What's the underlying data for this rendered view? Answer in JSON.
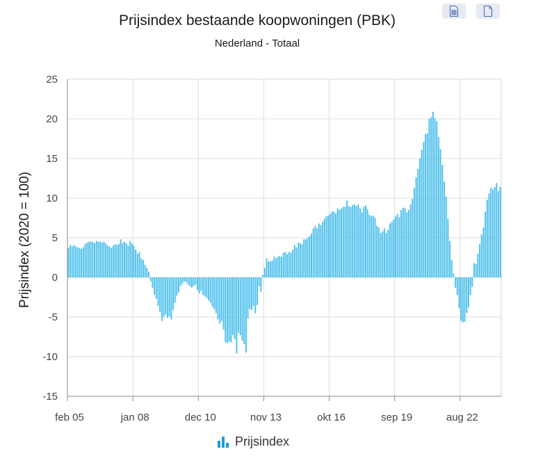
{
  "header": {
    "title": "Prijsindex bestaande koopwoningen (PBK)",
    "subtitle": "Nederland - Totaal"
  },
  "toolbar": {
    "table_icon": "table-file-icon",
    "file_icon": "file-icon"
  },
  "legend": {
    "label": "Prijsindex",
    "icon": "bar-chart-icon"
  },
  "chart_data": {
    "type": "bar",
    "title": "Prijsindex bestaande koopwoningen (PBK)",
    "subtitle": "Nederland - Totaal",
    "ylabel": "Prijsindex (2020 = 100)",
    "xlabel": "",
    "ylim": [
      -15,
      25
    ],
    "yticks": [
      25,
      20,
      15,
      10,
      5,
      0,
      -5,
      -10,
      -15
    ],
    "xtick_labels": [
      "feb 05",
      "jan 08",
      "dec 10",
      "nov 13",
      "okt 16",
      "sep 19",
      "aug 22"
    ],
    "start_month": "feb 05",
    "grid": true,
    "bar_color": "#4fc1ec",
    "series": [
      {
        "name": "Prijsindex",
        "values": [
          3.7,
          4.1,
          3.9,
          4.1,
          3.9,
          3.8,
          3.7,
          3.6,
          3.8,
          4.2,
          4.4,
          4.5,
          4.5,
          4.5,
          4.3,
          4.6,
          4.5,
          4.5,
          4.4,
          4.5,
          4.3,
          4.0,
          3.9,
          3.7,
          4.0,
          4.2,
          4.1,
          4.2,
          4.8,
          4.3,
          4.5,
          4.3,
          4.0,
          4.6,
          4.3,
          4.0,
          3.5,
          3.0,
          3.2,
          2.4,
          2.2,
          1.6,
          1.2,
          0.7,
          -0.5,
          -1.3,
          -2.2,
          -2.7,
          -3.6,
          -4.4,
          -5.5,
          -5.0,
          -4.7,
          -5.1,
          -4.9,
          -5.3,
          -4.1,
          -3.2,
          -2.3,
          -1.9,
          -1.1,
          -0.8,
          -0.5,
          -0.6,
          -0.9,
          -1.1,
          -1.3,
          -1.1,
          -0.9,
          -1.6,
          -2.0,
          -1.7,
          -2.2,
          -2.4,
          -2.6,
          -2.9,
          -3.2,
          -3.7,
          -4.0,
          -4.5,
          -5.3,
          -5.8,
          -5.5,
          -6.6,
          -8.2,
          -8.3,
          -8.1,
          -8.2,
          -7.3,
          -7.8,
          -9.6,
          -7.0,
          -7.3,
          -8.0,
          -8.4,
          -9.5,
          -5.2,
          -4.0,
          -4.1,
          -3.6,
          -4.5,
          -3.5,
          -1.1,
          -1.8,
          0.3,
          1.2,
          2.4,
          2.0,
          2.0,
          2.1,
          2.6,
          2.4,
          2.6,
          2.7,
          2.6,
          3.1,
          3.2,
          2.9,
          3.2,
          3.1,
          3.5,
          4.1,
          3.8,
          4.4,
          4.3,
          4.2,
          4.8,
          4.8,
          5.0,
          5.2,
          5.5,
          6.2,
          6.5,
          6.2,
          6.8,
          6.6,
          7.0,
          7.4,
          7.7,
          7.8,
          8.0,
          8.3,
          8.3,
          8.1,
          8.7,
          8.5,
          8.7,
          8.9,
          8.9,
          9.7,
          9.0,
          8.9,
          9.1,
          9.2,
          9.0,
          9.2,
          8.7,
          8.2,
          8.9,
          9.1,
          8.6,
          7.9,
          7.7,
          7.8,
          7.5,
          6.5,
          6.3,
          5.6,
          5.8,
          6.2,
          5.6,
          6.0,
          6.8,
          7.0,
          7.3,
          7.7,
          8.0,
          7.6,
          8.5,
          8.8,
          8.7,
          8.2,
          8.5,
          9.2,
          9.9,
          11.3,
          12.6,
          13.7,
          15.0,
          16.1,
          17.1,
          18.1,
          18.2,
          20.0,
          20.2,
          20.9,
          20.1,
          19.7,
          17.7,
          16.2,
          14.2,
          12.1,
          10.2,
          7.4,
          4.6,
          2.2,
          0.5,
          -1.3,
          -2.2,
          -3.9,
          -5.5,
          -5.7,
          -5.6,
          -4.5,
          -3.8,
          -2.2,
          -1.2,
          1.8,
          1.7,
          3.0,
          4.2,
          5.4,
          6.3,
          8.3,
          9.8,
          10.6,
          11.3,
          11.1,
          11.4,
          11.9,
          10.9,
          11.4
        ]
      }
    ]
  }
}
